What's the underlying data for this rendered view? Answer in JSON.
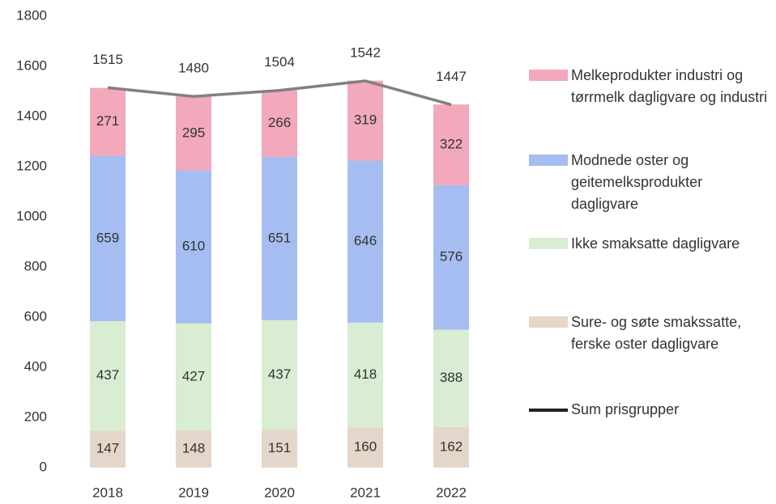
{
  "chart_data": {
    "type": "bar",
    "stacked": true,
    "categories": [
      "2018",
      "2019",
      "2020",
      "2021",
      "2022"
    ],
    "series": [
      {
        "name": "Sure- og søte smakssatte, ferske oster dagligvare",
        "color": "#e4d6c9",
        "values": [
          147,
          148,
          151,
          160,
          162
        ]
      },
      {
        "name": "Ikke smaksatte dagligvare",
        "color": "#d8edd2",
        "values": [
          437,
          427,
          437,
          418,
          388
        ]
      },
      {
        "name": "Modnede oster og geitemelksprodukter dagligvare",
        "color": "#a5bdf0",
        "values": [
          659,
          610,
          651,
          646,
          576
        ]
      },
      {
        "name": "Melkeprodukter industri og tørrmelk dagligvare og industri",
        "color": "#f2a9bb",
        "values": [
          271,
          295,
          266,
          319,
          322
        ]
      },
      {
        "name": "Sum prisgrupper",
        "type": "line",
        "color": "#808080",
        "values": [
          1515,
          1480,
          1504,
          1542,
          1447
        ]
      }
    ],
    "ylim": [
      0,
      1800
    ],
    "yticks": [
      0,
      200,
      400,
      600,
      800,
      1000,
      1200,
      1400,
      1600,
      1800
    ],
    "grid": false
  }
}
